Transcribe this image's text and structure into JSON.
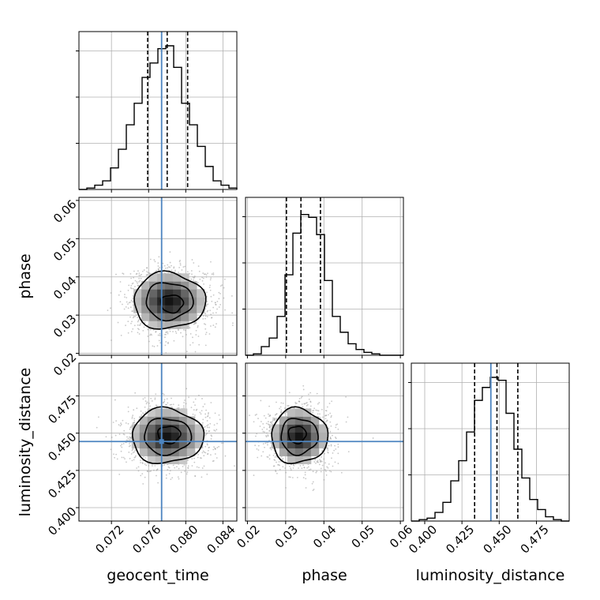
{
  "chart_data": {
    "type": "corner",
    "parameters": [
      {
        "name": "geocent_time",
        "label": "geocent_time",
        "range": [
          0.0685,
          0.0855
        ],
        "ticks": [
          "0.072",
          "0.076",
          "0.080",
          "0.084"
        ],
        "truth": 0.0774,
        "quantiles": [
          0.0759,
          0.078,
          0.0802
        ]
      },
      {
        "name": "phase",
        "label": "phase",
        "range": [
          0.0195,
          0.0608
        ],
        "ticks": [
          "0.02",
          "0.03",
          "0.04",
          "0.05",
          "0.06"
        ],
        "truth": null,
        "quantiles": [
          0.0302,
          0.034,
          0.0391
        ]
      },
      {
        "name": "luminosity_distance",
        "label": "luminosity_distance",
        "range": [
          0.391,
          0.497
        ],
        "ticks": [
          "0.400",
          "0.425",
          "0.450",
          "0.475"
        ],
        "truth": 0.4444,
        "quantiles": [
          0.4335,
          0.4485,
          0.4625
        ]
      }
    ],
    "histograms": [
      {
        "parameter": "geocent_time",
        "bins_from": 0.0685,
        "bins_to": 0.0855,
        "counts": [
          0.0,
          0.01,
          0.03,
          0.06,
          0.15,
          0.28,
          0.45,
          0.6,
          0.78,
          0.88,
          0.98,
          1.0,
          0.85,
          0.6,
          0.45,
          0.3,
          0.16,
          0.06,
          0.03,
          0.01
        ]
      },
      {
        "parameter": "phase",
        "bins_from": 0.0195,
        "bins_to": 0.0608,
        "counts": [
          0.0,
          0.01,
          0.06,
          0.12,
          0.27,
          0.56,
          0.85,
          0.98,
          0.96,
          0.84,
          0.52,
          0.27,
          0.16,
          0.08,
          0.04,
          0.02,
          0.01,
          0.0,
          0.0,
          0.0
        ]
      },
      {
        "parameter": "luminosity_distance",
        "bins_from": 0.391,
        "bins_to": 0.497,
        "counts": [
          0.0,
          0.01,
          0.02,
          0.06,
          0.13,
          0.28,
          0.42,
          0.62,
          0.84,
          0.93,
          1.0,
          0.98,
          0.75,
          0.5,
          0.3,
          0.15,
          0.08,
          0.03,
          0.01,
          0.0
        ]
      }
    ],
    "pairs": [
      {
        "x": "geocent_time",
        "y": "phase",
        "mean": [
          0.0782,
          0.0337
        ],
        "sd": [
          0.0022,
          0.0042
        ],
        "crosshair": [
          0.0774,
          null
        ],
        "peak": [
          0.0785,
          0.033
        ]
      },
      {
        "x": "geocent_time",
        "y": "luminosity_distance",
        "mean": [
          0.078,
          0.448
        ],
        "sd": [
          0.0022,
          0.0105
        ],
        "crosshair": [
          0.0774,
          0.4444
        ],
        "peak": [
          0.0782,
          0.449
        ]
      },
      {
        "x": "phase",
        "y": "luminosity_distance",
        "mean": [
          0.0335,
          0.448
        ],
        "sd": [
          0.0042,
          0.0105
        ],
        "crosshair": [
          null,
          0.4444
        ],
        "peak": [
          0.033,
          0.449
        ]
      }
    ],
    "colors": {
      "truth": "#4c84c0",
      "hist": "#000000",
      "grid": "#b0b0b0",
      "scatter": "#9a9a9a"
    },
    "grid": true
  }
}
